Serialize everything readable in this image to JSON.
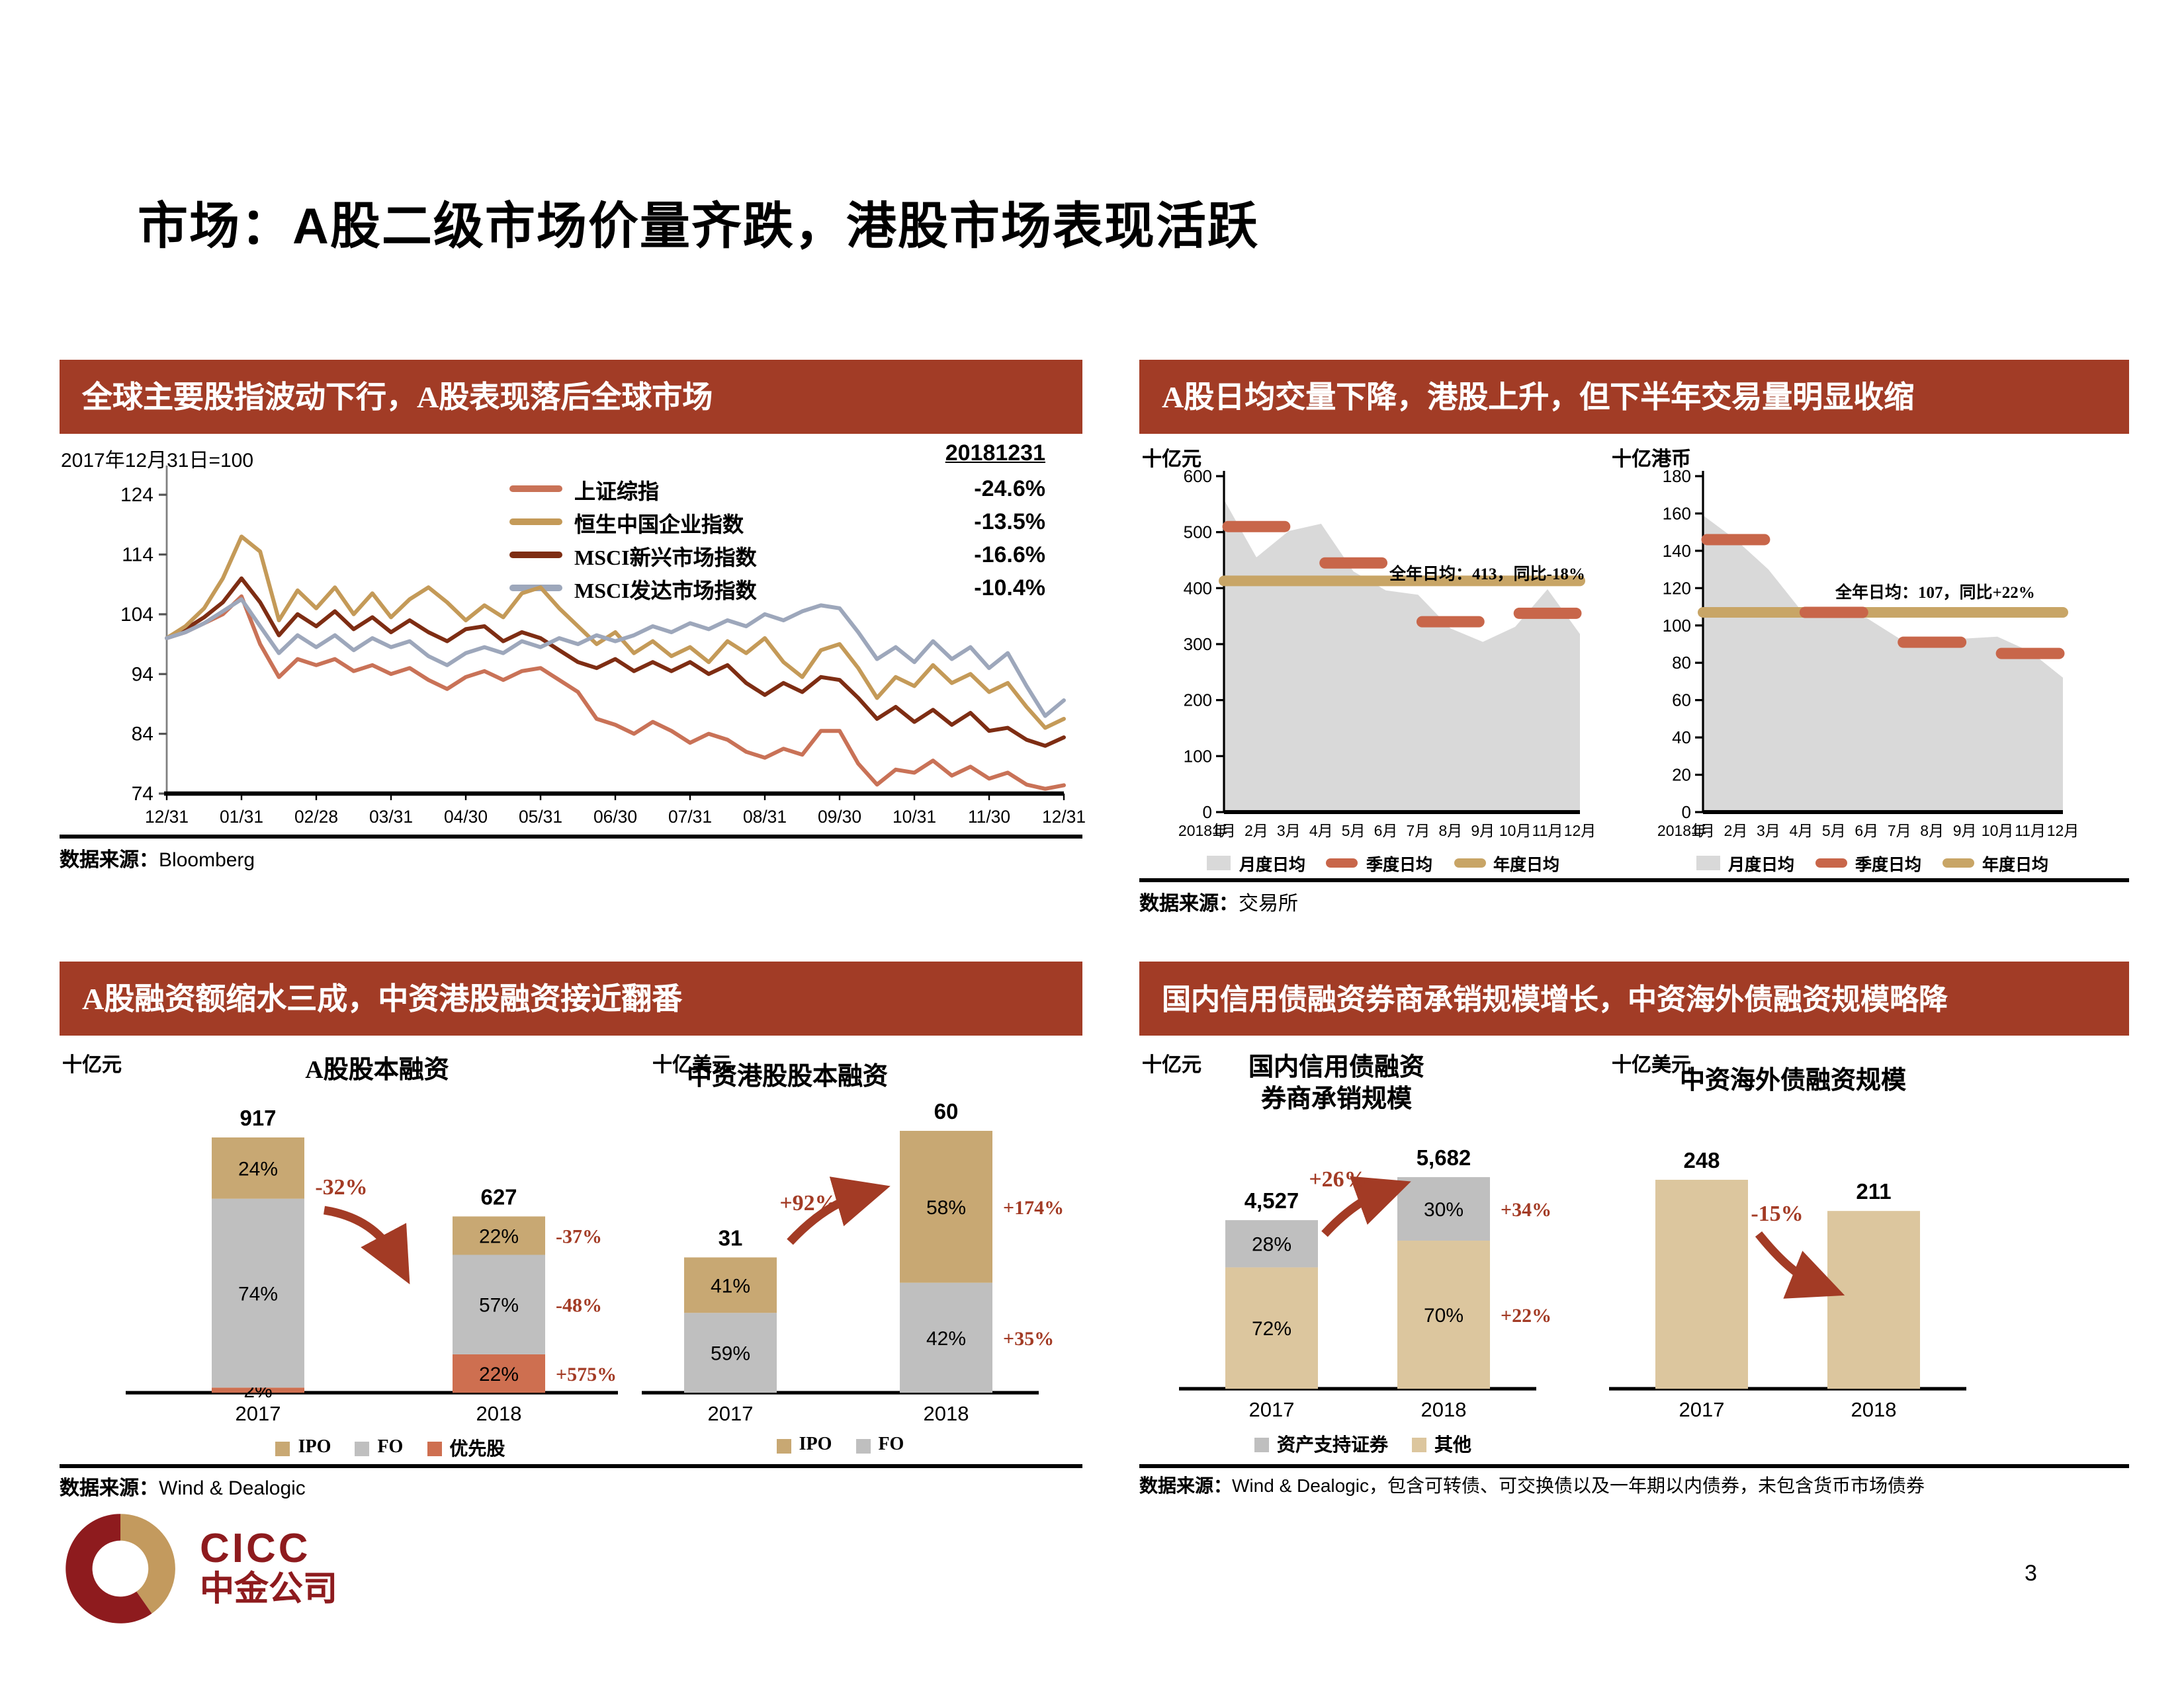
{
  "page": {
    "title": "市场：A股二级市场价量齐跌，港股市场表现活跃",
    "page_number": "3",
    "logo_text": "CICC",
    "logo_subtext": "中金公司"
  },
  "colors": {
    "header_bg": "#A23C26",
    "accent": "#A33B25",
    "logo_maroon": "#8E1B1E",
    "logo_tan": "#C39A5E"
  },
  "panels": {
    "global": {
      "header": "全球主要股指波动下行，A股表现落后全球市场",
      "subtitle": "2017年12月31日=100",
      "date_label": "20181231",
      "source_prefix": "数据来源：",
      "source": "Bloomberg"
    },
    "turnover": {
      "header": "A股日均交量下降，港股上升，但下半年交易量明显收缩",
      "source_prefix": "数据来源：",
      "source": "交易所"
    },
    "equity": {
      "header": "A股融资额缩水三成，中资港股融资接近翻番",
      "source_prefix": "数据来源：",
      "source": "Wind & Dealogic"
    },
    "bond": {
      "header": "国内信用债融资券商承销规模增长，中资海外债融资规模略降",
      "source_prefix": "数据来源：",
      "source": "Wind & Dealogic，包含可转债、可交换债以及一年期以内债券，未包含货币市场债券"
    }
  },
  "chart_data": [
    {
      "id": "global_indices",
      "type": "line",
      "title": "全球主要股指波动下行，A股表现落后全球市场",
      "note": "2017年12月31日=100",
      "date_label": "20181231",
      "ylim": [
        74,
        128
      ],
      "yticks": [
        124,
        114,
        104,
        94,
        84,
        74
      ],
      "x_tick_labels": [
        "12/31",
        "01/31",
        "02/28",
        "03/31",
        "04/30",
        "05/31",
        "06/30",
        "07/31",
        "08/31",
        "09/30",
        "10/31",
        "11/30",
        "12/31"
      ],
      "series": [
        {
          "name": "上证综指",
          "pct_2018": "-24.6%",
          "color": "#C97257",
          "values": [
            100,
            101,
            102.5,
            104,
            107,
            99,
            93.5,
            96.5,
            95.5,
            96.5,
            94.5,
            95.5,
            94,
            95,
            93,
            91.5,
            93.5,
            94.5,
            93,
            94.5,
            95,
            93,
            91,
            86.5,
            85.5,
            84,
            86,
            84.5,
            82.5,
            84,
            83,
            81,
            80,
            81.5,
            80.5,
            84.5,
            84.5,
            79,
            75.5,
            78,
            77.5,
            79.5,
            77,
            78.5,
            76.5,
            77.5,
            75.5,
            74.8,
            75.4
          ]
        },
        {
          "name": "恒生中国企业指数",
          "pct_2018": "-13.5%",
          "color": "#C49A58",
          "values": [
            100,
            102,
            105,
            110,
            117,
            114.5,
            103,
            108,
            105,
            108.5,
            104,
            107.5,
            103.5,
            106.5,
            108.5,
            106,
            103,
            105.5,
            103.5,
            107.5,
            108.5,
            105,
            102,
            99,
            101,
            97.5,
            99.5,
            97,
            98.5,
            96,
            99.5,
            97.5,
            100,
            96,
            93.5,
            98,
            99,
            95,
            90,
            93.5,
            92,
            95.5,
            92.5,
            94,
            91,
            92.5,
            88.5,
            85,
            86.5
          ]
        },
        {
          "name": "MSCI新兴市场指数",
          "pct_2018": "-16.6%",
          "color": "#7E2D13",
          "values": [
            100,
            101.5,
            103.5,
            106,
            110,
            106,
            100.5,
            104,
            102,
            104.5,
            101.5,
            103.5,
            101,
            103,
            101,
            99.5,
            101.5,
            102,
            99.5,
            101,
            100,
            98,
            96,
            95,
            96.5,
            94.5,
            96,
            94.5,
            96,
            94,
            95.5,
            92.5,
            90.5,
            92.5,
            91,
            93.5,
            93,
            90,
            86.5,
            88.5,
            86,
            88,
            85.5,
            87.5,
            84.5,
            85,
            83,
            82,
            83.4
          ]
        },
        {
          "name": "MSCI发达市场指数",
          "pct_2018": "-10.4%",
          "color": "#9DA7BB",
          "values": [
            100,
            101,
            102.5,
            104.5,
            106.5,
            102,
            97.5,
            100.5,
            98.5,
            100.5,
            98,
            100,
            98.5,
            99.5,
            97,
            95.5,
            97.5,
            98.5,
            97.5,
            99.5,
            98.5,
            100,
            99,
            100.5,
            99.5,
            100.5,
            102,
            101,
            102.5,
            101.5,
            103,
            102,
            104,
            103,
            104.5,
            105.5,
            105,
            101,
            96.5,
            98.5,
            96,
            99.5,
            96.5,
            98.5,
            95,
            97.5,
            92,
            87,
            89.6
          ]
        }
      ],
      "source": "Bloomberg"
    },
    {
      "id": "ashare_turnover",
      "type": "area",
      "unit": "十亿元",
      "x_prefix": "2018年",
      "categories": [
        "1月",
        "2月",
        "3月",
        "4月",
        "5月",
        "6月",
        "7月",
        "8月",
        "9月",
        "10月",
        "11月",
        "12月"
      ],
      "monthly": [
        558,
        455,
        502,
        515,
        430,
        396,
        388,
        328,
        304,
        331,
        398,
        318
      ],
      "quarterly": [
        510,
        445,
        340,
        355
      ],
      "annual": 413,
      "annotation": "全年日均：413，同比-18%",
      "ylim": [
        0,
        600
      ],
      "yticks": [
        0,
        100,
        200,
        300,
        400,
        500,
        600
      ],
      "legend": [
        "月度日均",
        "季度日均",
        "年度日均"
      ],
      "colors": {
        "area": "#D9D9D9",
        "quarterly": "#C8664A",
        "annual": "#C8A566"
      }
    },
    {
      "id": "hk_turnover",
      "type": "area",
      "unit": "十亿港币",
      "x_prefix": "2018年",
      "categories": [
        "1月",
        "2月",
        "3月",
        "4月",
        "5月",
        "6月",
        "7月",
        "8月",
        "9月",
        "10月",
        "11月",
        "12月"
      ],
      "monthly": [
        159,
        146,
        130,
        108,
        106,
        104,
        93,
        90,
        93,
        94,
        86,
        72
      ],
      "quarterly": [
        146,
        107,
        91,
        85
      ],
      "annual": 107,
      "annotation": "全年日均：107，同比+22%",
      "ylim": [
        0,
        180
      ],
      "yticks": [
        0,
        20,
        40,
        60,
        80,
        100,
        120,
        140,
        160,
        180
      ],
      "legend": [
        "月度日均",
        "季度日均",
        "年度日均"
      ],
      "colors": {
        "area": "#D9D9D9",
        "quarterly": "#C8664A",
        "annual": "#C8A566"
      }
    },
    {
      "id": "ashare_equity_financing",
      "type": "stacked_bar",
      "unit": "十亿元",
      "title": "A股股本融资",
      "categories": [
        "2017",
        "2018"
      ],
      "bars": [
        {
          "category": "2017",
          "total": 917,
          "total_label": "917",
          "segments": [
            {
              "name": "优先股",
              "pct": 2,
              "label": "2%"
            },
            {
              "name": "FO",
              "pct": 74,
              "label": "74%"
            },
            {
              "name": "IPO",
              "pct": 24,
              "label": "24%"
            }
          ]
        },
        {
          "category": "2018",
          "total": 627,
          "total_label": "627",
          "segments": [
            {
              "name": "优先股",
              "pct": 22,
              "label": "22%",
              "change": "+575%"
            },
            {
              "name": "FO",
              "pct": 57,
              "label": "57%",
              "change": "-48%"
            },
            {
              "name": "IPO",
              "pct": 22,
              "label": "22%",
              "change": "-37%"
            }
          ]
        }
      ],
      "arrow": {
        "label": "-32%",
        "direction": "down"
      },
      "legend": [
        {
          "name": "IPO"
        },
        {
          "name": "FO"
        },
        {
          "name": "优先股"
        }
      ],
      "colors": {
        "IPO": "#C8A873",
        "FO": "#BFBFBF",
        "优先股": "#CE6F50"
      }
    },
    {
      "id": "hk_equity_financing",
      "type": "stacked_bar",
      "unit": "十亿美元",
      "title": "中资港股股本融资",
      "categories": [
        "2017",
        "2018"
      ],
      "bars": [
        {
          "category": "2017",
          "total": 31,
          "total_label": "31",
          "segments": [
            {
              "name": "FO",
              "pct": 59,
              "label": "59%"
            },
            {
              "name": "IPO",
              "pct": 41,
              "label": "41%"
            }
          ]
        },
        {
          "category": "2018",
          "total": 60,
          "total_label": "60",
          "segments": [
            {
              "name": "FO",
              "pct": 42,
              "label": "42%",
              "change": "+35%"
            },
            {
              "name": "IPO",
              "pct": 58,
              "label": "58%",
              "change": "+174%"
            }
          ]
        }
      ],
      "arrow": {
        "label": "+92%",
        "direction": "up"
      },
      "legend": [
        {
          "name": "IPO"
        },
        {
          "name": "FO"
        }
      ],
      "colors": {
        "IPO": "#C8A873",
        "FO": "#BFBFBF"
      }
    },
    {
      "id": "domestic_credit_bond_underwriting",
      "type": "stacked_bar",
      "unit": "十亿元",
      "title_lines": [
        "国内信用债融资",
        "券商承销规模"
      ],
      "categories": [
        "2017",
        "2018"
      ],
      "bars": [
        {
          "category": "2017",
          "total": 4527,
          "total_label": "4,527",
          "segments": [
            {
              "name": "其他",
              "pct": 72,
              "label": "72%"
            },
            {
              "name": "资产支持证券",
              "pct": 28,
              "label": "28%"
            }
          ]
        },
        {
          "category": "2018",
          "total": 5682,
          "total_label": "5,682",
          "segments": [
            {
              "name": "其他",
              "pct": 70,
              "label": "70%",
              "change": "+22%"
            },
            {
              "name": "资产支持证券",
              "pct": 30,
              "label": "30%",
              "change": "+34%"
            }
          ]
        }
      ],
      "arrow": {
        "label": "+26%",
        "direction": "up"
      },
      "legend": [
        {
          "name": "资产支持证券"
        },
        {
          "name": "其他"
        }
      ],
      "colors": {
        "资产支持证券": "#BFBFBF",
        "其他": "#DCC69E"
      }
    },
    {
      "id": "offshore_china_bond",
      "type": "bar",
      "unit": "十亿美元",
      "title": "中资海外债融资规模",
      "categories": [
        "2017",
        "2018"
      ],
      "values": [
        248,
        211
      ],
      "value_labels": [
        "248",
        "211"
      ],
      "arrow": {
        "label": "-15%",
        "direction": "down"
      },
      "colors": {
        "bar": "#DCC69E"
      }
    }
  ]
}
